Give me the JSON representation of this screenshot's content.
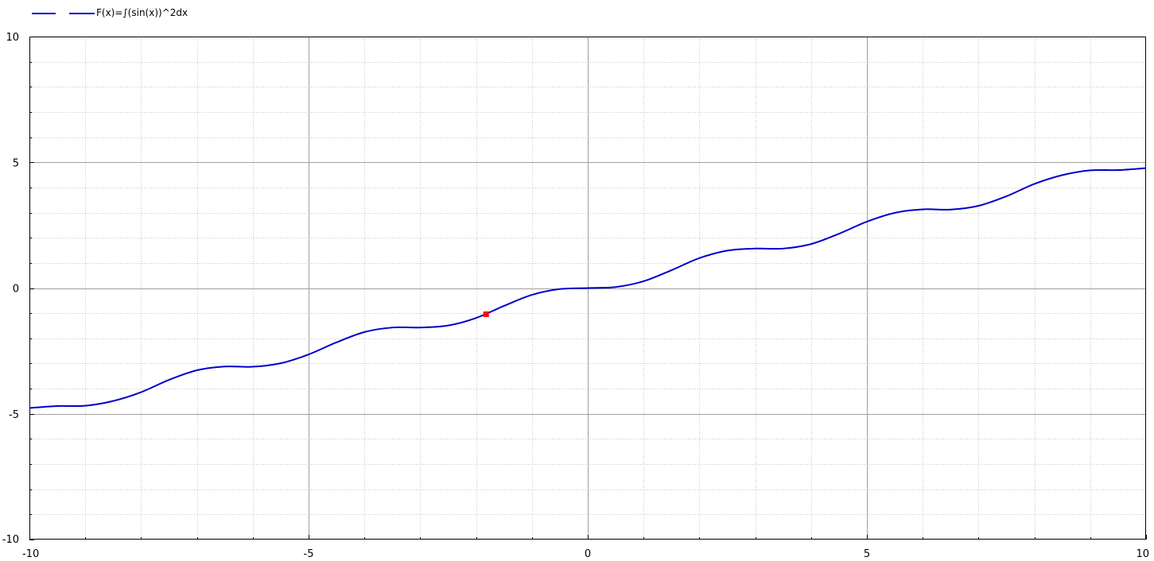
{
  "legend": {
    "entries": [
      {
        "label": "",
        "color": "#0000cc"
      },
      {
        "label": "F(x)=∫(sin(x))^2dx",
        "color": "#0000cc"
      }
    ]
  },
  "chart_data": {
    "type": "line",
    "title": "",
    "xlabel": "",
    "ylabel": "",
    "xlim": [
      -10,
      10
    ],
    "ylim": [
      -10,
      10
    ],
    "x_ticks": [
      -10,
      -5,
      0,
      5,
      10
    ],
    "y_ticks": [
      -10,
      -5,
      0,
      5,
      10
    ],
    "x_tick_labels": [
      "-10",
      "-5",
      "0",
      "5",
      "10"
    ],
    "y_tick_labels": [
      "-10",
      "-5",
      "0",
      "5",
      "10"
    ],
    "grid": true,
    "minor_grid": true,
    "legend_position": "top-left",
    "series": [
      {
        "name": "F(x)=∫(sin(x))^2dx",
        "color": "#0000cc",
        "x": [
          -10,
          -9.5,
          -9,
          -8.5,
          -8,
          -7.5,
          -7,
          -6.5,
          -6,
          -5.5,
          -5,
          -4.5,
          -4,
          -3.5,
          -3,
          -2.5,
          -2,
          -1.5,
          -1,
          -0.5,
          0,
          0.5,
          1,
          1.5,
          2,
          2.5,
          3,
          3.5,
          4,
          4.5,
          5,
          5.5,
          6,
          6.5,
          7,
          7.5,
          8,
          8.5,
          9,
          9.5,
          10
        ],
        "y": [
          -4.77,
          -4.69,
          -4.68,
          -4.49,
          -4.14,
          -3.65,
          -3.27,
          -3.12,
          -3.13,
          -2.99,
          -2.64,
          -2.16,
          -1.75,
          -1.57,
          -1.57,
          -1.49,
          -1.19,
          -0.71,
          -0.27,
          -0.04,
          0.0,
          0.04,
          0.27,
          0.71,
          1.19,
          1.49,
          1.57,
          1.57,
          1.75,
          2.16,
          2.64,
          2.99,
          3.13,
          3.12,
          3.27,
          3.65,
          4.14,
          4.49,
          4.68,
          4.69,
          4.77
        ]
      }
    ],
    "marker": {
      "x": -1.82,
      "y": -1.04,
      "color": "#ff0000"
    }
  }
}
